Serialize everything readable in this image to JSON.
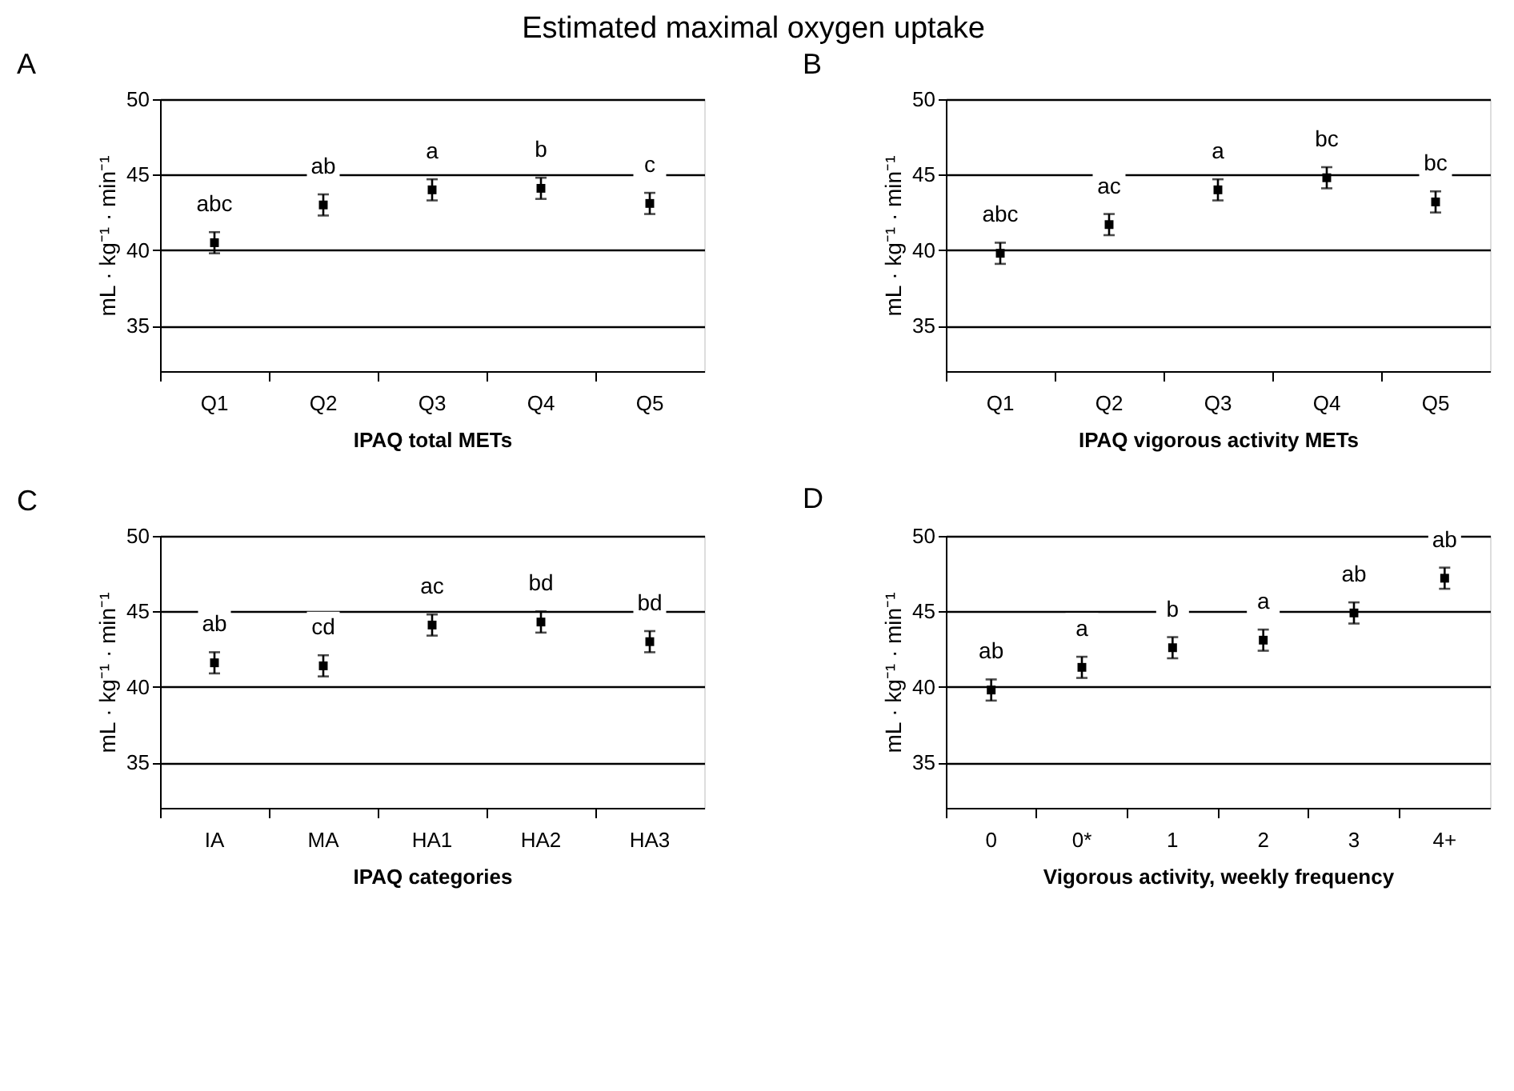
{
  "chart_data": [
    {
      "type": "scatter",
      "title": "A",
      "annotations": [
        "Estimated maximal oxygen uptake"
      ],
      "xlabel": "IPAQ total METs",
      "ylabel": "mL · kg⁻¹ · min⁻¹",
      "categories": [
        "Q1",
        "Q2",
        "Q3",
        "Q4",
        "Q5"
      ],
      "series": [
        {
          "color": "#000000",
          "values": [
            40.5,
            43,
            44,
            44.1,
            43.1
          ],
          "errors": [
            0.7,
            0.7,
            0.7,
            0.7,
            0.7
          ],
          "value_labels": [
            "abc",
            "ab",
            "a",
            "b",
            "c"
          ]
        }
      ],
      "ylim": [
        32,
        50
      ],
      "yticks": [
        35,
        40,
        45,
        50
      ],
      "grid": "y",
      "marker": "square"
    },
    {
      "type": "scatter",
      "title": "B",
      "xlabel": "IPAQ vigorous activity METs",
      "ylabel": "mL · kg⁻¹ · min⁻¹",
      "categories": [
        "Q1",
        "Q2",
        "Q3",
        "Q4",
        "Q5"
      ],
      "series": [
        {
          "color": "#000000",
          "values": [
            39.8,
            41.7,
            44,
            44.8,
            43.2
          ],
          "errors": [
            0.7,
            0.7,
            0.7,
            0.7,
            0.7
          ],
          "value_labels": [
            "abc",
            "ac",
            "a",
            "bc",
            "bc"
          ]
        }
      ],
      "ylim": [
        32,
        50
      ],
      "yticks": [
        35,
        40,
        45,
        50
      ],
      "grid": "y",
      "marker": "square"
    },
    {
      "type": "scatter",
      "title": "C",
      "xlabel": "IPAQ categories",
      "ylabel": "mL · kg⁻¹ · min⁻¹",
      "categories": [
        "IA",
        "MA",
        "HA1",
        "HA2",
        "HA3"
      ],
      "series": [
        {
          "color": "#000000",
          "values": [
            41.6,
            41.4,
            44.1,
            44.3,
            43
          ],
          "errors": [
            0.7,
            0.7,
            0.7,
            0.7,
            0.7
          ],
          "value_labels": [
            "ab",
            "cd",
            "ac",
            "bd",
            "bd"
          ]
        }
      ],
      "ylim": [
        32,
        50
      ],
      "yticks": [
        35,
        40,
        45,
        50
      ],
      "grid": "y",
      "marker": "square"
    },
    {
      "type": "scatter",
      "title": "D",
      "xlabel": "Vigorous activity, weekly frequency",
      "ylabel": "mL · kg⁻¹ · min⁻¹",
      "categories": [
        "0",
        "0*",
        "1",
        "2",
        "3",
        "4+"
      ],
      "series": [
        {
          "color": "#000000",
          "values": [
            39.8,
            41.3,
            42.6,
            43.1,
            44.9,
            47.2
          ],
          "errors": [
            0.7,
            0.7,
            0.7,
            0.7,
            0.7,
            0.7
          ],
          "value_labels": [
            "ab",
            "a",
            "b",
            "a",
            "ab",
            "ab"
          ]
        }
      ],
      "ylim": [
        32,
        50
      ],
      "yticks": [
        35,
        40,
        45,
        50
      ],
      "grid": "y",
      "marker": "square"
    }
  ]
}
